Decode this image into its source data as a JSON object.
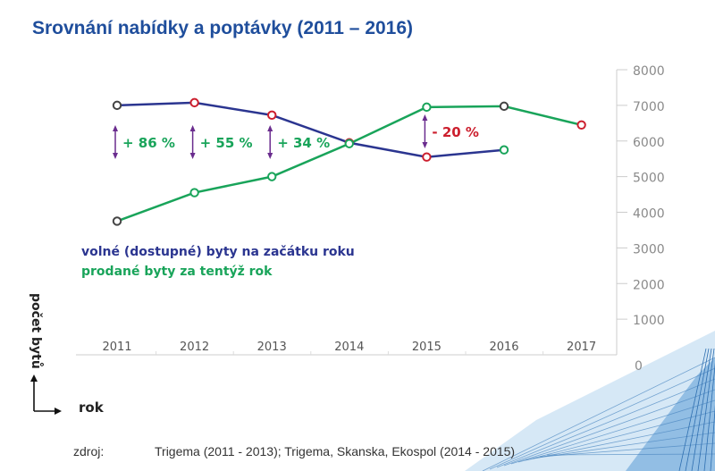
{
  "chart_data": {
    "type": "line",
    "title": "Srovnání nabídky a poptávky (2011 – 2016)",
    "xlabel": "rok",
    "ylabel": "počet bytů",
    "categories": [
      "2011",
      "2012",
      "2013",
      "2014",
      "2015",
      "2016",
      "2017"
    ],
    "yticks": [
      "0",
      "1000",
      "2000",
      "3000",
      "4000",
      "5000",
      "6000",
      "7000",
      "8000"
    ],
    "ylim": [
      0,
      8000
    ],
    "grid": false,
    "series": [
      {
        "name": "volné (dostupné) byty na začátku roku",
        "color": "#2b3590",
        "values": [
          7000,
          7075,
          6725,
          5950,
          5550,
          5750,
          null
        ],
        "marker_colors": [
          "#444444",
          "#cc1f2e",
          "#cc1f2e",
          "#cc1f2e",
          "#cc1f2e",
          "#19a45a",
          null
        ]
      },
      {
        "name": "prodané byty za tentýž rok",
        "color": "#19a45a",
        "values": [
          3750,
          4550,
          5000,
          5925,
          6950,
          6975,
          6450
        ],
        "marker_colors": [
          "#444444",
          "#19a45a",
          "#19a45a",
          "#19a45a",
          "#19a45a",
          "#444444",
          "#cc1f2e"
        ]
      }
    ],
    "annotations": [
      {
        "category": "2011",
        "text": "+ 86 %",
        "color": "#19a45a"
      },
      {
        "category": "2012",
        "text": "+ 55 %",
        "color": "#19a45a"
      },
      {
        "category": "2013",
        "text": "+ 34 %",
        "color": "#19a45a"
      },
      {
        "category": "2015",
        "text": "- 20 %",
        "color": "#cc1f2e"
      }
    ],
    "arrow_color": "#6a2c8e"
  },
  "source": {
    "label": "zdroj:",
    "text": "Trigema (2011 - 2013); Trigema, Skanska, Ekospol (2014 - 2015)"
  }
}
